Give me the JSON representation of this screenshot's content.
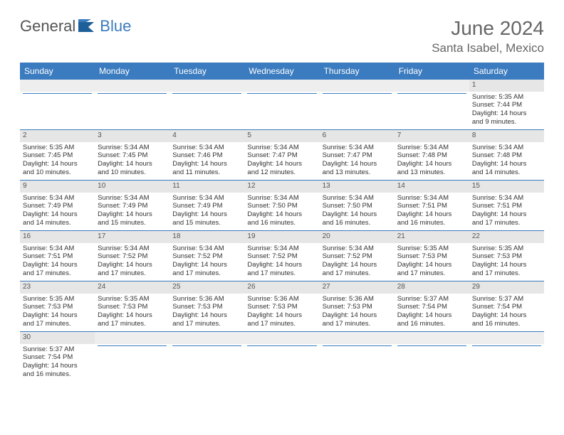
{
  "logo": {
    "text1": "General",
    "text2": "Blue"
  },
  "title": "June 2024",
  "location": "Santa Isabel, Mexico",
  "colors": {
    "header_bg": "#3b7bbf",
    "header_text": "#ffffff",
    "daynum_bg": "#e6e6e6",
    "border": "#3b7bbf",
    "title_color": "#666666"
  },
  "weekdays": [
    "Sunday",
    "Monday",
    "Tuesday",
    "Wednesday",
    "Thursday",
    "Friday",
    "Saturday"
  ],
  "cells": [
    [
      {
        "n": "",
        "l": [
          "",
          "",
          "",
          ""
        ]
      },
      {
        "n": "",
        "l": [
          "",
          "",
          "",
          ""
        ]
      },
      {
        "n": "",
        "l": [
          "",
          "",
          "",
          ""
        ]
      },
      {
        "n": "",
        "l": [
          "",
          "",
          "",
          ""
        ]
      },
      {
        "n": "",
        "l": [
          "",
          "",
          "",
          ""
        ]
      },
      {
        "n": "",
        "l": [
          "",
          "",
          "",
          ""
        ]
      },
      {
        "n": "1",
        "l": [
          "Sunrise: 5:35 AM",
          "Sunset: 7:44 PM",
          "Daylight: 14 hours",
          "and 9 minutes."
        ]
      }
    ],
    [
      {
        "n": "2",
        "l": [
          "Sunrise: 5:35 AM",
          "Sunset: 7:45 PM",
          "Daylight: 14 hours",
          "and 10 minutes."
        ]
      },
      {
        "n": "3",
        "l": [
          "Sunrise: 5:34 AM",
          "Sunset: 7:45 PM",
          "Daylight: 14 hours",
          "and 10 minutes."
        ]
      },
      {
        "n": "4",
        "l": [
          "Sunrise: 5:34 AM",
          "Sunset: 7:46 PM",
          "Daylight: 14 hours",
          "and 11 minutes."
        ]
      },
      {
        "n": "5",
        "l": [
          "Sunrise: 5:34 AM",
          "Sunset: 7:47 PM",
          "Daylight: 14 hours",
          "and 12 minutes."
        ]
      },
      {
        "n": "6",
        "l": [
          "Sunrise: 5:34 AM",
          "Sunset: 7:47 PM",
          "Daylight: 14 hours",
          "and 13 minutes."
        ]
      },
      {
        "n": "7",
        "l": [
          "Sunrise: 5:34 AM",
          "Sunset: 7:48 PM",
          "Daylight: 14 hours",
          "and 13 minutes."
        ]
      },
      {
        "n": "8",
        "l": [
          "Sunrise: 5:34 AM",
          "Sunset: 7:48 PM",
          "Daylight: 14 hours",
          "and 14 minutes."
        ]
      }
    ],
    [
      {
        "n": "9",
        "l": [
          "Sunrise: 5:34 AM",
          "Sunset: 7:49 PM",
          "Daylight: 14 hours",
          "and 14 minutes."
        ]
      },
      {
        "n": "10",
        "l": [
          "Sunrise: 5:34 AM",
          "Sunset: 7:49 PM",
          "Daylight: 14 hours",
          "and 15 minutes."
        ]
      },
      {
        "n": "11",
        "l": [
          "Sunrise: 5:34 AM",
          "Sunset: 7:49 PM",
          "Daylight: 14 hours",
          "and 15 minutes."
        ]
      },
      {
        "n": "12",
        "l": [
          "Sunrise: 5:34 AM",
          "Sunset: 7:50 PM",
          "Daylight: 14 hours",
          "and 16 minutes."
        ]
      },
      {
        "n": "13",
        "l": [
          "Sunrise: 5:34 AM",
          "Sunset: 7:50 PM",
          "Daylight: 14 hours",
          "and 16 minutes."
        ]
      },
      {
        "n": "14",
        "l": [
          "Sunrise: 5:34 AM",
          "Sunset: 7:51 PM",
          "Daylight: 14 hours",
          "and 16 minutes."
        ]
      },
      {
        "n": "15",
        "l": [
          "Sunrise: 5:34 AM",
          "Sunset: 7:51 PM",
          "Daylight: 14 hours",
          "and 17 minutes."
        ]
      }
    ],
    [
      {
        "n": "16",
        "l": [
          "Sunrise: 5:34 AM",
          "Sunset: 7:51 PM",
          "Daylight: 14 hours",
          "and 17 minutes."
        ]
      },
      {
        "n": "17",
        "l": [
          "Sunrise: 5:34 AM",
          "Sunset: 7:52 PM",
          "Daylight: 14 hours",
          "and 17 minutes."
        ]
      },
      {
        "n": "18",
        "l": [
          "Sunrise: 5:34 AM",
          "Sunset: 7:52 PM",
          "Daylight: 14 hours",
          "and 17 minutes."
        ]
      },
      {
        "n": "19",
        "l": [
          "Sunrise: 5:34 AM",
          "Sunset: 7:52 PM",
          "Daylight: 14 hours",
          "and 17 minutes."
        ]
      },
      {
        "n": "20",
        "l": [
          "Sunrise: 5:34 AM",
          "Sunset: 7:52 PM",
          "Daylight: 14 hours",
          "and 17 minutes."
        ]
      },
      {
        "n": "21",
        "l": [
          "Sunrise: 5:35 AM",
          "Sunset: 7:53 PM",
          "Daylight: 14 hours",
          "and 17 minutes."
        ]
      },
      {
        "n": "22",
        "l": [
          "Sunrise: 5:35 AM",
          "Sunset: 7:53 PM",
          "Daylight: 14 hours",
          "and 17 minutes."
        ]
      }
    ],
    [
      {
        "n": "23",
        "l": [
          "Sunrise: 5:35 AM",
          "Sunset: 7:53 PM",
          "Daylight: 14 hours",
          "and 17 minutes."
        ]
      },
      {
        "n": "24",
        "l": [
          "Sunrise: 5:35 AM",
          "Sunset: 7:53 PM",
          "Daylight: 14 hours",
          "and 17 minutes."
        ]
      },
      {
        "n": "25",
        "l": [
          "Sunrise: 5:36 AM",
          "Sunset: 7:53 PM",
          "Daylight: 14 hours",
          "and 17 minutes."
        ]
      },
      {
        "n": "26",
        "l": [
          "Sunrise: 5:36 AM",
          "Sunset: 7:53 PM",
          "Daylight: 14 hours",
          "and 17 minutes."
        ]
      },
      {
        "n": "27",
        "l": [
          "Sunrise: 5:36 AM",
          "Sunset: 7:53 PM",
          "Daylight: 14 hours",
          "and 17 minutes."
        ]
      },
      {
        "n": "28",
        "l": [
          "Sunrise: 5:37 AM",
          "Sunset: 7:54 PM",
          "Daylight: 14 hours",
          "and 16 minutes."
        ]
      },
      {
        "n": "29",
        "l": [
          "Sunrise: 5:37 AM",
          "Sunset: 7:54 PM",
          "Daylight: 14 hours",
          "and 16 minutes."
        ]
      }
    ],
    [
      {
        "n": "30",
        "l": [
          "Sunrise: 5:37 AM",
          "Sunset: 7:54 PM",
          "Daylight: 14 hours",
          "and 16 minutes."
        ]
      },
      {
        "n": "",
        "l": [
          "",
          "",
          "",
          ""
        ]
      },
      {
        "n": "",
        "l": [
          "",
          "",
          "",
          ""
        ]
      },
      {
        "n": "",
        "l": [
          "",
          "",
          "",
          ""
        ]
      },
      {
        "n": "",
        "l": [
          "",
          "",
          "",
          ""
        ]
      },
      {
        "n": "",
        "l": [
          "",
          "",
          "",
          ""
        ]
      },
      {
        "n": "",
        "l": [
          "",
          "",
          "",
          ""
        ]
      }
    ]
  ]
}
